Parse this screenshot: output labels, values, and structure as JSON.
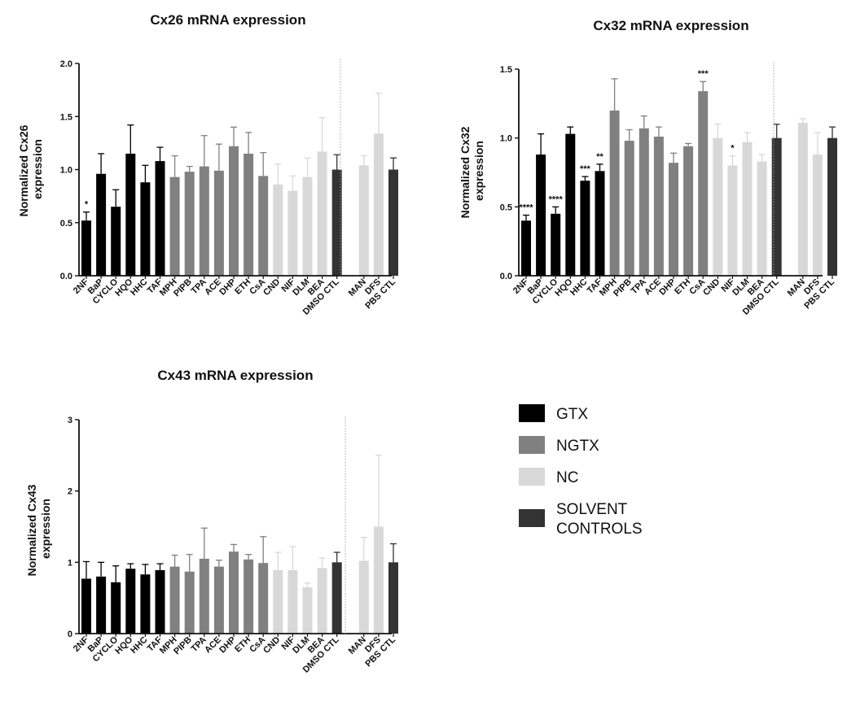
{
  "colors": {
    "GTX": "#000000",
    "NGTX": "#808080",
    "NC": "#d8d8d8",
    "SOLVENT": "#333333"
  },
  "chart_data": [
    {
      "type": "bar",
      "title": "Cx26 mRNA expression",
      "ylabel_lines": [
        "Normalized Cx26",
        "expression"
      ],
      "ylim": [
        0,
        2
      ],
      "ytick_values": [
        0,
        0.5,
        1,
        1.5,
        2
      ],
      "ytick_labels": [
        "0.0",
        "0.5",
        "1.0",
        "1.5",
        "2.0"
      ],
      "categories": [
        "2NF",
        "BaP",
        "CYCLO",
        "HQO",
        "HHC",
        "TAF",
        "MPH",
        "PIPB",
        "TPA",
        "ACE",
        "DHP",
        "ETH",
        "CsA",
        "CND",
        "NIF",
        "DLM",
        "BEA",
        "DMSO CTL",
        "MAN",
        "DFS",
        "PBS CTL"
      ],
      "groups": [
        "GTX",
        "GTX",
        "GTX",
        "GTX",
        "GTX",
        "GTX",
        "NGTX",
        "NGTX",
        "NGTX",
        "NGTX",
        "NGTX",
        "NGTX",
        "NGTX",
        "NC",
        "NC",
        "NC",
        "NC",
        "SOLVENT",
        "NC",
        "NC",
        "SOLVENT"
      ],
      "values": [
        0.52,
        0.96,
        0.65,
        1.15,
        0.88,
        1.08,
        0.93,
        0.98,
        1.03,
        0.99,
        1.22,
        1.15,
        0.94,
        0.86,
        0.8,
        0.93,
        1.17,
        1.0,
        1.04,
        1.34,
        1.0
      ],
      "errors": [
        0.08,
        0.19,
        0.16,
        0.27,
        0.16,
        0.13,
        0.2,
        0.05,
        0.29,
        0.25,
        0.18,
        0.2,
        0.22,
        0.19,
        0.14,
        0.18,
        0.32,
        0.14,
        0.09,
        0.38,
        0.11
      ],
      "significance": [
        "*",
        "",
        "",
        "",
        "",
        "",
        "",
        "",
        "",
        "",
        "",
        "",
        "",
        "",
        "",
        "",
        "",
        "",
        "",
        "",
        ""
      ],
      "separator_after_index": 17
    },
    {
      "type": "bar",
      "title": "Cx32 mRNA expression",
      "ylabel_lines": [
        "Normalized Cx32",
        "expression"
      ],
      "ylim": [
        0,
        1.5
      ],
      "ytick_values": [
        0,
        0.5,
        1,
        1.5
      ],
      "ytick_labels": [
        "0.0",
        "0.5",
        "1.0",
        "1.5"
      ],
      "categories": [
        "2NF",
        "BaP",
        "CYCLO",
        "HQO",
        "HHC",
        "TAF",
        "MPH",
        "PIPB",
        "TPA",
        "ACE",
        "DHP",
        "ETH",
        "CsA",
        "CND",
        "NIF",
        "DLM",
        "BEA",
        "DMSO CTL",
        "MAN",
        "DFS",
        "PBS CTL"
      ],
      "groups": [
        "GTX",
        "GTX",
        "GTX",
        "GTX",
        "GTX",
        "GTX",
        "NGTX",
        "NGTX",
        "NGTX",
        "NGTX",
        "NGTX",
        "NGTX",
        "NGTX",
        "NC",
        "NC",
        "NC",
        "NC",
        "SOLVENT",
        "NC",
        "NC",
        "SOLVENT"
      ],
      "values": [
        0.4,
        0.88,
        0.45,
        1.03,
        0.69,
        0.76,
        1.2,
        0.98,
        1.07,
        1.01,
        0.82,
        0.94,
        1.34,
        1.0,
        0.8,
        0.97,
        0.83,
        1.0,
        1.11,
        0.88,
        1.0
      ],
      "errors": [
        0.04,
        0.15,
        0.05,
        0.05,
        0.03,
        0.05,
        0.23,
        0.08,
        0.09,
        0.07,
        0.07,
        0.02,
        0.07,
        0.1,
        0.07,
        0.07,
        0.05,
        0.1,
        0.03,
        0.16,
        0.08
      ],
      "significance": [
        "****",
        "",
        "****",
        "",
        "***",
        "**",
        "",
        "",
        "",
        "",
        "",
        "",
        "***",
        "",
        "*",
        "",
        "",
        "",
        "",
        "",
        ""
      ],
      "separator_after_index": 17
    },
    {
      "type": "bar",
      "title": "Cx43 mRNA expression",
      "ylabel_lines": [
        "Normalized Cx43",
        "expression"
      ],
      "ylim": [
        0,
        3
      ],
      "ytick_values": [
        0,
        1,
        2,
        3
      ],
      "ytick_labels": [
        "0",
        "1",
        "2",
        "3"
      ],
      "categories": [
        "2NF",
        "BaP",
        "CYCLO",
        "HQO",
        "HHC",
        "TAF",
        "MPH",
        "PIPB",
        "TPA",
        "ACE",
        "DHP",
        "ETH",
        "CsA",
        "CND",
        "NIF",
        "DLM",
        "BEA",
        "DMSO CTL",
        "MAN",
        "DFS",
        "PBS CTL"
      ],
      "groups": [
        "GTX",
        "GTX",
        "GTX",
        "GTX",
        "GTX",
        "GTX",
        "NGTX",
        "NGTX",
        "NGTX",
        "NGTX",
        "NGTX",
        "NGTX",
        "NGTX",
        "NC",
        "NC",
        "NC",
        "NC",
        "SOLVENT",
        "NC",
        "NC",
        "SOLVENT"
      ],
      "values": [
        0.77,
        0.8,
        0.72,
        0.91,
        0.83,
        0.89,
        0.94,
        0.87,
        1.05,
        0.94,
        1.15,
        1.04,
        0.99,
        0.89,
        0.89,
        0.65,
        0.92,
        1.0,
        1.02,
        1.5,
        1.0
      ],
      "errors": [
        0.24,
        0.2,
        0.23,
        0.07,
        0.14,
        0.09,
        0.16,
        0.24,
        0.43,
        0.09,
        0.1,
        0.07,
        0.37,
        0.25,
        0.33,
        0.06,
        0.14,
        0.14,
        0.33,
        1.0,
        0.26
      ],
      "significance": [
        "",
        "",
        "",
        "",
        "",
        "",
        "",
        "",
        "",
        "",
        "",
        "",
        "",
        "",
        "",
        "",
        "",
        "",
        "",
        "",
        ""
      ],
      "separator_after_index": 17
    }
  ],
  "legend": [
    {
      "key": "GTX",
      "label_lines": [
        "GTX"
      ]
    },
    {
      "key": "NGTX",
      "label_lines": [
        "NGTX"
      ]
    },
    {
      "key": "NC",
      "label_lines": [
        "NC"
      ]
    },
    {
      "key": "SOLVENT",
      "label_lines": [
        "SOLVENT",
        "CONTROLS"
      ]
    }
  ]
}
